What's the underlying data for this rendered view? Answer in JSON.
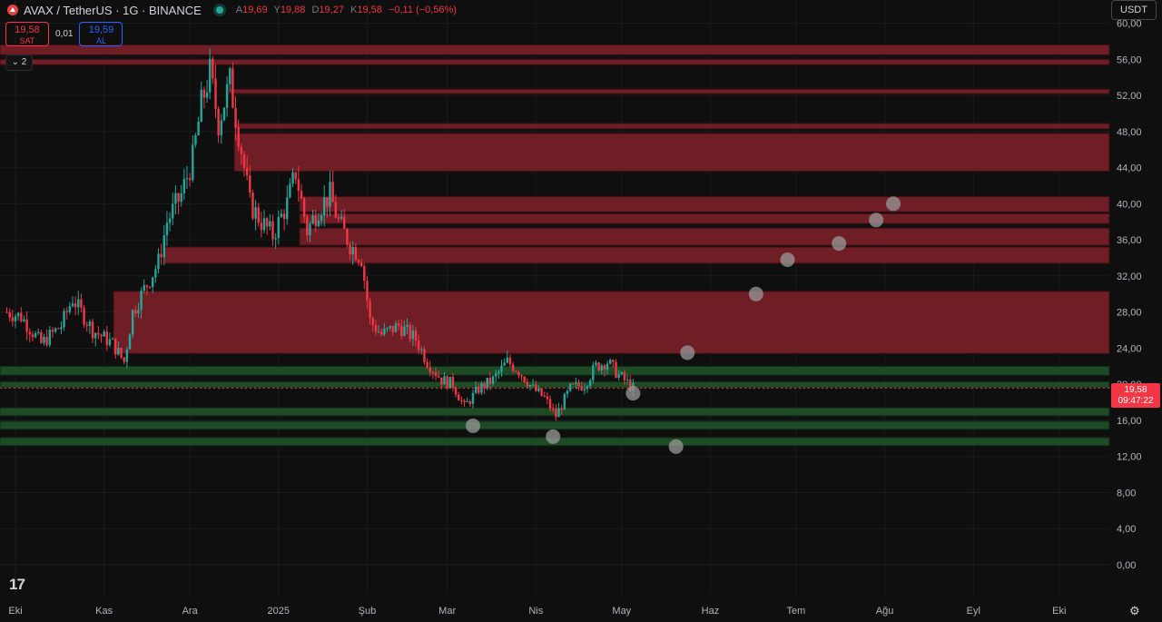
{
  "header": {
    "symbol": "AVAX / TetherUS · 1G · BINANCE",
    "open_label": "A",
    "open": "19,69",
    "high_label": "Y",
    "high": "19,88",
    "low_label": "D",
    "low": "19,27",
    "close_label": "K",
    "close": "19,58",
    "change": "−0,11 (−0,56%)"
  },
  "trade": {
    "sell_price": "19,58",
    "sell_label": "SAT",
    "spread": "0,01",
    "buy_price": "19,59",
    "buy_label": "AL"
  },
  "indicators_toggle": "2",
  "currency": "USDT",
  "last_price": {
    "price": "19,58",
    "countdown": "09:47:22"
  },
  "colors": {
    "up": "#26a69a",
    "down": "#f23645",
    "resistance": "#6e1e24",
    "support": "#1e4a25",
    "marker": "#9a9a9a"
  },
  "chart_data": {
    "type": "candlestick",
    "title": "",
    "y_ticks": [
      "60,00",
      "56,00",
      "52,00",
      "48,00",
      "44,00",
      "40,00",
      "36,00",
      "32,00",
      "28,00",
      "24,00",
      "20,00",
      "16,00",
      "12,00",
      "8,00",
      "4,00",
      "0,00"
    ],
    "ylim": [
      0,
      60
    ],
    "x_ticks": [
      "Eki",
      "Kas",
      "Ara",
      "2025",
      "Şub",
      "Mar",
      "Nis",
      "May",
      "Haz",
      "Tem",
      "Ağu",
      "Eyl",
      "Eki"
    ],
    "grid": true,
    "last_price": 19.58,
    "resistance_zones": [
      [
        56.5,
        57.6
      ],
      [
        55.4,
        56.0
      ],
      [
        52.2,
        52.7
      ],
      [
        48.3,
        48.9
      ],
      [
        43.6,
        47.8
      ],
      [
        39.1,
        40.8
      ],
      [
        37.8,
        38.9
      ],
      [
        35.4,
        37.3
      ],
      [
        33.4,
        35.2
      ],
      [
        23.4,
        30.3
      ]
    ],
    "support_zones": [
      [
        21.0,
        22.0
      ],
      [
        19.6,
        20.3
      ],
      [
        16.5,
        17.4
      ],
      [
        15.0,
        15.9
      ],
      [
        13.2,
        14.1
      ]
    ],
    "projected_markers": [
      {
        "date": "2025-03-10",
        "price": 15.4
      },
      {
        "date": "2025-04-07",
        "price": 14.2
      },
      {
        "date": "2025-05-05",
        "price": 19.0
      },
      {
        "date": "2025-05-20",
        "price": 13.1
      },
      {
        "date": "2025-05-24",
        "price": 23.5
      },
      {
        "date": "2025-06-17",
        "price": 30.0
      },
      {
        "date": "2025-06-28",
        "price": 33.8
      },
      {
        "date": "2025-07-16",
        "price": 35.6
      },
      {
        "date": "2025-07-29",
        "price": 38.2
      },
      {
        "date": "2025-08-04",
        "price": 40.0
      }
    ],
    "price_path": [
      [
        "2024-09-28",
        28.0
      ],
      [
        "2024-10-03",
        27.5
      ],
      [
        "2024-10-10",
        24.5
      ],
      [
        "2024-10-17",
        26.5
      ],
      [
        "2024-10-21",
        29.5
      ],
      [
        "2024-10-28",
        26.0
      ],
      [
        "2024-11-04",
        24.5
      ],
      [
        "2024-11-08",
        22.5
      ],
      [
        "2024-11-11",
        28.0
      ],
      [
        "2024-11-15",
        30.5
      ],
      [
        "2024-11-20",
        33.5
      ],
      [
        "2024-11-23",
        38.0
      ],
      [
        "2024-11-28",
        41.0
      ],
      [
        "2024-12-02",
        45.0
      ],
      [
        "2024-12-05",
        51.0
      ],
      [
        "2024-12-08",
        54.5
      ],
      [
        "2024-12-11",
        49.0
      ],
      [
        "2024-12-15",
        53.5
      ],
      [
        "2024-12-19",
        46.0
      ],
      [
        "2024-12-22",
        40.0
      ],
      [
        "2024-12-26",
        38.0
      ],
      [
        "2024-12-30",
        36.5
      ],
      [
        "2025-01-04",
        40.0
      ],
      [
        "2025-01-07",
        43.5
      ],
      [
        "2025-01-11",
        37.0
      ],
      [
        "2025-01-15",
        39.5
      ],
      [
        "2025-01-19",
        41.0
      ],
      [
        "2025-01-22",
        38.0
      ],
      [
        "2025-01-26",
        35.5
      ],
      [
        "2025-01-30",
        34.0
      ],
      [
        "2025-02-02",
        27.0
      ],
      [
        "2025-02-06",
        25.5
      ],
      [
        "2025-02-12",
        26.5
      ],
      [
        "2025-02-18",
        25.0
      ],
      [
        "2025-02-22",
        22.5
      ],
      [
        "2025-02-27",
        20.5
      ],
      [
        "2025-03-03",
        20.0
      ],
      [
        "2025-03-07",
        17.5
      ],
      [
        "2025-03-12",
        19.5
      ],
      [
        "2025-03-17",
        20.5
      ],
      [
        "2025-03-22",
        22.5
      ],
      [
        "2025-03-26",
        21.5
      ],
      [
        "2025-03-31",
        19.5
      ],
      [
        "2025-04-04",
        18.5
      ],
      [
        "2025-04-08",
        16.5
      ],
      [
        "2025-04-13",
        19.5
      ],
      [
        "2025-04-18",
        20.0
      ],
      [
        "2025-04-22",
        22.0
      ],
      [
        "2025-04-26",
        22.5
      ],
      [
        "2025-04-30",
        21.0
      ],
      [
        "2025-05-05",
        19.58
      ]
    ]
  }
}
